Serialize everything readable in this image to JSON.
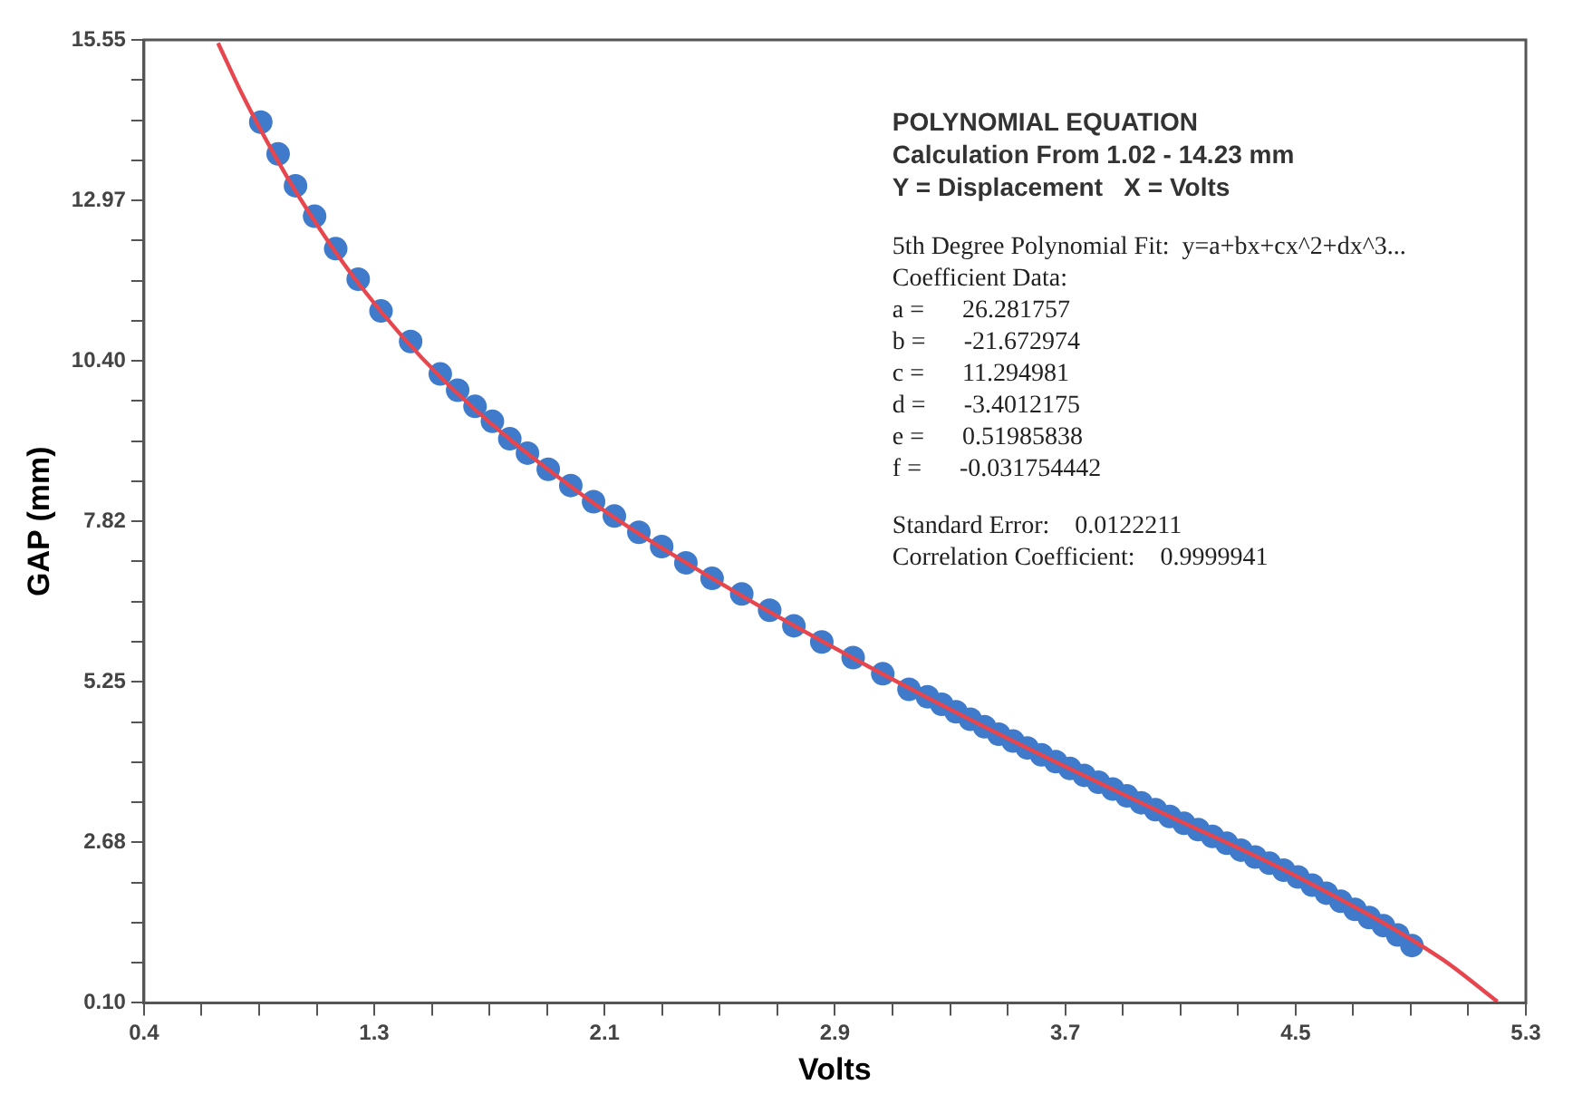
{
  "chart_data": {
    "type": "scatter",
    "xlabel": "Volts",
    "ylabel": "GAP (mm)",
    "xlim": [
      0.45,
      5.3
    ],
    "ylim": [
      0.1,
      15.55
    ],
    "xticks": [
      {
        "value": 0.45,
        "label": "0.4"
      },
      {
        "value": 0.6521,
        "label": null
      },
      {
        "value": 0.8542,
        "label": null
      },
      {
        "value": 1.0563,
        "label": null
      },
      {
        "value": 1.2583,
        "label": "1.3"
      },
      {
        "value": 1.4604,
        "label": null
      },
      {
        "value": 1.6625,
        "label": null
      },
      {
        "value": 1.8646,
        "label": null
      },
      {
        "value": 2.0667,
        "label": "2.1"
      },
      {
        "value": 2.2688,
        "label": null
      },
      {
        "value": 2.4708,
        "label": null
      },
      {
        "value": 2.6729,
        "label": null
      },
      {
        "value": 2.875,
        "label": "2.9"
      },
      {
        "value": 3.0771,
        "label": null
      },
      {
        "value": 3.2792,
        "label": null
      },
      {
        "value": 3.4813,
        "label": null
      },
      {
        "value": 3.6833,
        "label": "3.7"
      },
      {
        "value": 3.8854,
        "label": null
      },
      {
        "value": 4.0875,
        "label": null
      },
      {
        "value": 4.2896,
        "label": null
      },
      {
        "value": 4.4917,
        "label": "4.5"
      },
      {
        "value": 4.6938,
        "label": null
      },
      {
        "value": 4.8958,
        "label": null
      },
      {
        "value": 5.0979,
        "label": null
      },
      {
        "value": 5.3,
        "label": "5.3"
      }
    ],
    "yticks": [
      {
        "value": 0.1,
        "label": "0.10"
      },
      {
        "value": 0.74375,
        "label": null
      },
      {
        "value": 1.3875,
        "label": null
      },
      {
        "value": 2.03125,
        "label": null
      },
      {
        "value": 2.675,
        "label": "2.68"
      },
      {
        "value": 3.31875,
        "label": null
      },
      {
        "value": 3.9625,
        "label": null
      },
      {
        "value": 4.60625,
        "label": null
      },
      {
        "value": 5.25,
        "label": "5.25"
      },
      {
        "value": 5.89375,
        "label": null
      },
      {
        "value": 6.5375,
        "label": null
      },
      {
        "value": 7.18125,
        "label": null
      },
      {
        "value": 7.825,
        "label": "7.82"
      },
      {
        "value": 8.46875,
        "label": null
      },
      {
        "value": 9.1125,
        "label": null
      },
      {
        "value": 9.75625,
        "label": null
      },
      {
        "value": 10.4,
        "label": "10.40"
      },
      {
        "value": 11.04375,
        "label": null
      },
      {
        "value": 11.6875,
        "label": null
      },
      {
        "value": 12.33125,
        "label": null
      },
      {
        "value": 12.975,
        "label": "12.97"
      },
      {
        "value": 13.61875,
        "label": null
      },
      {
        "value": 14.2625,
        "label": null
      },
      {
        "value": 14.90625,
        "label": null
      },
      {
        "value": 15.55,
        "label": "15.55"
      }
    ],
    "grid": false,
    "legend": false,
    "annotations": [
      "POLYNOMIAL EQUATION",
      "Calculation From 1.02 - 14.23 mm",
      "Y = Displacement   X = Volts",
      "5th Degree Polynomial Fit:  y=a+bx+cx^2+dx^3...",
      "Coefficient Data:",
      "a =      26.281757",
      "b =      -21.672974",
      "c =      11.294981",
      "d =      -3.4012175",
      "e =      0.51985838",
      "f =      -0.031754442",
      "Standard Error:    0.0122211",
      "Correlation Coefficient:    0.9999941"
    ],
    "series": [
      {
        "type": "scatter",
        "marker": "circle",
        "color": "#3f7acb",
        "x": [
          0.86,
          0.921,
          0.982,
          1.049,
          1.123,
          1.202,
          1.282,
          1.386,
          1.49,
          1.551,
          1.612,
          1.673,
          1.734,
          1.796,
          1.869,
          1.948,
          2.028,
          2.101,
          2.187,
          2.267,
          2.352,
          2.444,
          2.548,
          2.646,
          2.731,
          2.829,
          2.939,
          3.043,
          3.135,
          3.2,
          3.25,
          3.3,
          3.35,
          3.4,
          3.45,
          3.5,
          3.55,
          3.6,
          3.65,
          3.7,
          3.75,
          3.8,
          3.85,
          3.9,
          3.95,
          4.0,
          4.05,
          4.1,
          4.15,
          4.2,
          4.25,
          4.3,
          4.35,
          4.4,
          4.45,
          4.5,
          4.55,
          4.6,
          4.65,
          4.7,
          4.75,
          4.8,
          4.85,
          4.9
        ],
        "values": [
          14.23,
          13.72,
          13.21,
          12.72,
          12.2,
          11.71,
          11.2,
          10.71,
          10.19,
          9.93,
          9.67,
          9.43,
          9.15,
          8.92,
          8.66,
          8.4,
          8.14,
          7.91,
          7.65,
          7.42,
          7.16,
          6.91,
          6.66,
          6.4,
          6.15,
          5.89,
          5.64,
          5.38,
          5.13,
          5.01,
          4.89,
          4.77,
          4.65,
          4.53,
          4.41,
          4.3,
          4.19,
          4.08,
          3.97,
          3.86,
          3.75,
          3.64,
          3.53,
          3.42,
          3.31,
          3.2,
          3.09,
          2.98,
          2.88,
          2.77,
          2.66,
          2.55,
          2.44,
          2.34,
          2.23,
          2.12,
          1.99,
          1.86,
          1.73,
          1.6,
          1.47,
          1.34,
          1.19,
          1.02
        ]
      },
      {
        "type": "line",
        "marker": "none",
        "color": "#e8464e",
        "x": [
          0.71,
          0.8,
          0.9,
          1.0,
          1.2,
          1.5,
          2.0,
          2.5,
          3.0,
          3.5,
          4.0,
          4.5,
          5.0,
          5.2
        ],
        "values": [
          15.5,
          14.63,
          13.77,
          12.99,
          11.66,
          10.1,
          8.21,
          6.76,
          5.48,
          4.3,
          3.2,
          2.12,
          0.82,
          0.12
        ]
      }
    ]
  }
}
